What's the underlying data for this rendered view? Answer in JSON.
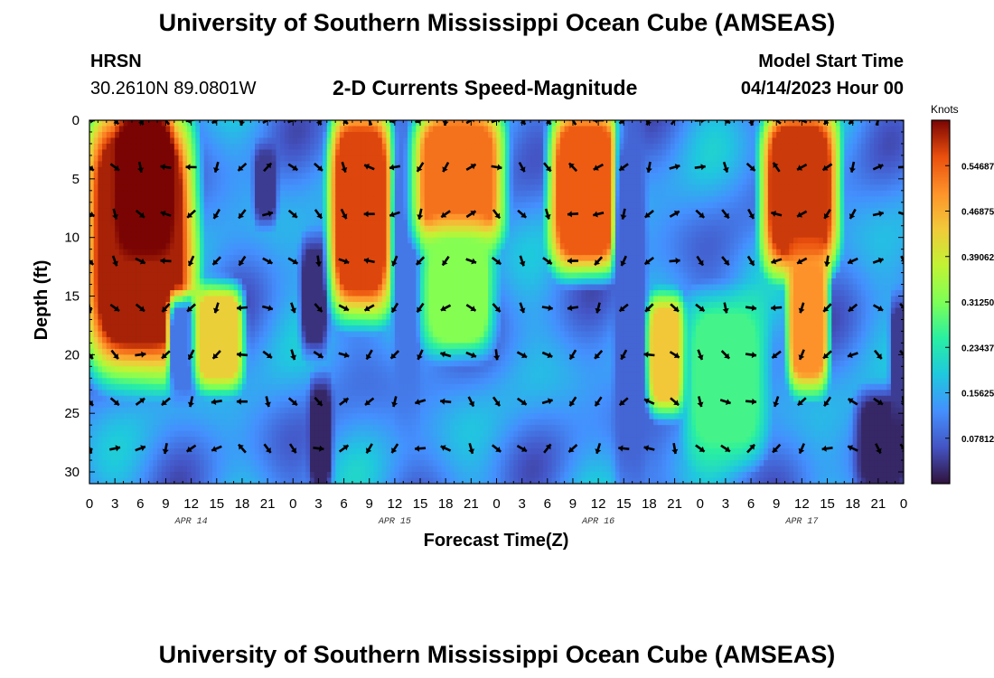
{
  "header": {
    "title": "University of Southern Mississippi Ocean Cube (AMSEAS)",
    "footer_title": "University of Southern Mississippi Ocean Cube (AMSEAS)",
    "station": "HRSN",
    "coords": "30.2610N  89.0801W",
    "plot_title": "2-D Currents Speed-Magnitude",
    "model_label": "Model Start Time",
    "model_time": "04/14/2023 Hour 00"
  },
  "chart_data": {
    "type": "heatmap",
    "title": "2-D Currents Speed-Magnitude",
    "xlabel": "Forecast Time(Z)",
    "ylabel": "Depth (ft)",
    "xlim": [
      0,
      96
    ],
    "ylim": [
      0,
      31
    ],
    "x_ticks": [
      0,
      3,
      6,
      9,
      12,
      15,
      18,
      21,
      24,
      27,
      30,
      33,
      36,
      39,
      42,
      45,
      48,
      51,
      54,
      57,
      60,
      63,
      66,
      69,
      72,
      75,
      78,
      81,
      84,
      87,
      90,
      93,
      96
    ],
    "x_tick_labels": [
      "0",
      "3",
      "6",
      "9",
      "12",
      "15",
      "18",
      "21",
      "0",
      "3",
      "6",
      "9",
      "12",
      "15",
      "18",
      "21",
      "0",
      "3",
      "6",
      "9",
      "12",
      "15",
      "18",
      "21",
      "0",
      "3",
      "6",
      "9",
      "12",
      "15",
      "18",
      "21",
      "0"
    ],
    "y_ticks": [
      0,
      5,
      10,
      15,
      20,
      25,
      30
    ],
    "y_tick_labels": [
      "0",
      "5",
      "10",
      "15",
      "20",
      "25",
      "30"
    ],
    "date_labels": [
      {
        "x": 12,
        "label": "APR 14"
      },
      {
        "x": 36,
        "label": "APR 15"
      },
      {
        "x": 60,
        "label": "APR 16"
      },
      {
        "x": 84,
        "label": "APR 17"
      }
    ],
    "colorbar": {
      "unit": "Knots",
      "min": 0,
      "max": 0.625,
      "ticks": [
        0.078125,
        0.15625,
        0.234375,
        0.3125,
        0.390625,
        0.46875,
        0.546875
      ],
      "tick_labels": [
        "0.07812",
        "0.15625",
        "0.23437",
        "0.31250",
        "0.39062",
        "0.46875",
        "0.54687"
      ]
    },
    "vector_depths": [
      0,
      4,
      8,
      12,
      16,
      20,
      24,
      28
    ],
    "vector_hours": [
      0,
      3,
      6,
      9,
      12,
      15,
      18,
      21,
      24,
      27,
      30,
      33,
      36,
      39,
      42,
      45,
      48,
      51,
      54,
      57,
      60,
      63,
      66,
      69,
      72,
      75,
      78,
      81,
      84,
      87,
      90,
      93,
      96
    ],
    "speed_features": [
      {
        "t0": 0.3,
        "t1": 11.5,
        "z0": 0,
        "z1": 20.5,
        "v": 0.6
      },
      {
        "t0": 4,
        "t1": 9,
        "z0": 0,
        "z1": 10,
        "v": 0.66
      },
      {
        "t0": 10,
        "t1": 12,
        "z0": 16,
        "z1": 23,
        "v": 0.1
      },
      {
        "t0": 13,
        "t1": 17.5,
        "z0": 15,
        "z1": 22,
        "v": 0.43
      },
      {
        "t0": 20,
        "t1": 21.5,
        "z0": 3,
        "z1": 8,
        "v": 0.04
      },
      {
        "t0": 25.5,
        "t1": 27.5,
        "z0": 11,
        "z1": 19,
        "v": 0.03
      },
      {
        "t0": 26.5,
        "t1": 28,
        "z0": 23,
        "z1": 31,
        "v": 0.02
      },
      {
        "t0": 29,
        "t1": 35,
        "z0": 0,
        "z1": 15.5,
        "v": 0.57
      },
      {
        "t0": 36.5,
        "t1": 38.5,
        "z0": 0,
        "z1": 24,
        "v": 0.1
      },
      {
        "t0": 39,
        "t1": 48,
        "z0": 0,
        "z1": 10,
        "v": 0.53
      },
      {
        "t0": 40,
        "t1": 47,
        "z0": 10,
        "z1": 19,
        "v": 0.32
      },
      {
        "t0": 55,
        "t1": 62,
        "z0": 0,
        "z1": 12,
        "v": 0.55
      },
      {
        "t0": 62.5,
        "t1": 65,
        "z0": 0,
        "z1": 31,
        "v": 0.08
      },
      {
        "t0": 66.5,
        "t1": 69.5,
        "z0": 16,
        "z1": 24,
        "v": 0.44
      },
      {
        "t0": 71,
        "t1": 79,
        "z0": 16,
        "z1": 28,
        "v": 0.27
      },
      {
        "t0": 80,
        "t1": 87.5,
        "z0": 0,
        "z1": 12,
        "v": 0.58
      },
      {
        "t0": 83,
        "t1": 86.5,
        "z0": 12,
        "z1": 22,
        "v": 0.5
      },
      {
        "t0": 91,
        "t1": 96,
        "z0": 24,
        "z1": 31,
        "v": 0.02
      },
      {
        "t0": 95,
        "t1": 96,
        "z0": 16,
        "z1": 24,
        "v": 0.04
      }
    ]
  }
}
